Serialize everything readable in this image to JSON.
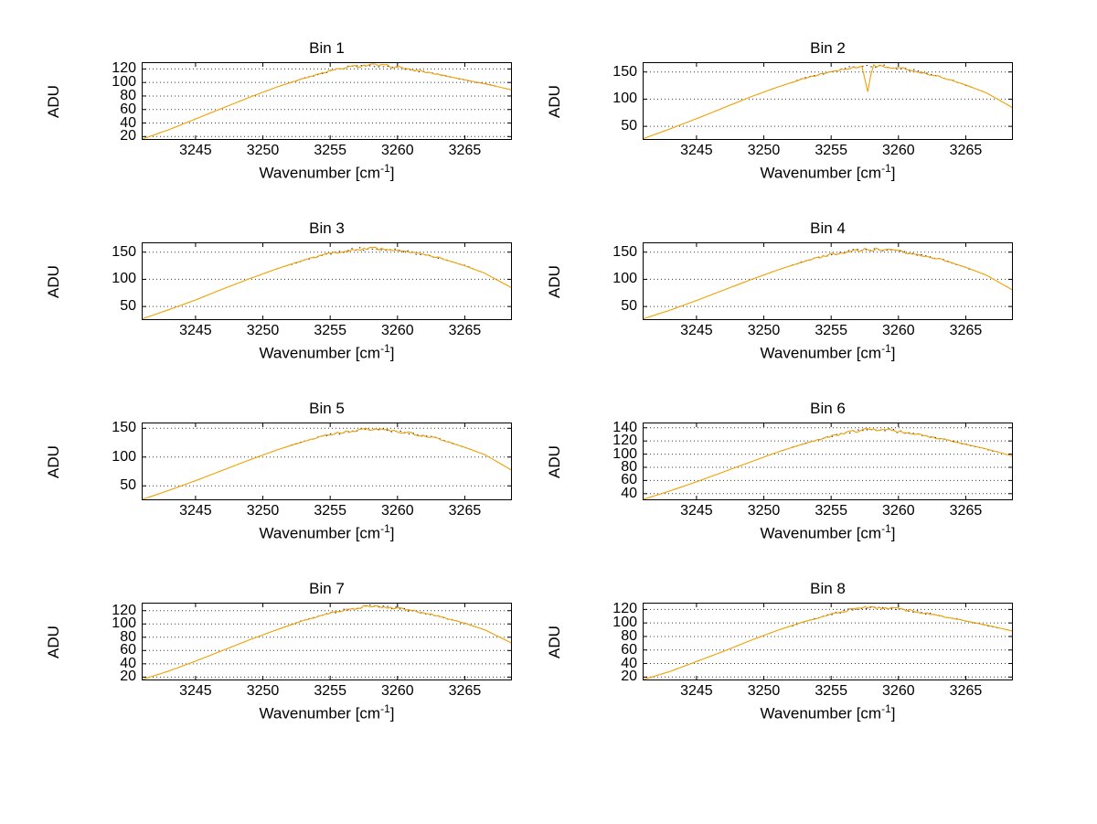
{
  "figure": {
    "background": "#ffffff",
    "line_color": "#f0a000",
    "overlay_color": "#26203a",
    "axis_color": "#000000",
    "grid_color": "#3c3c3c"
  },
  "labels": {
    "ylabel": "ADU",
    "xlabel_pre": "Wavenumber [cm",
    "xlabel_sup": "-1",
    "xlabel_post": "]"
  },
  "chart_data": [
    {
      "type": "line",
      "title": "Bin 1",
      "xlabel": "Wavenumber [cm-1]",
      "ylabel": "ADU",
      "xlim": [
        3241,
        3268.5
      ],
      "ylim": [
        15,
        130
      ],
      "x_ticks": [
        3245,
        3250,
        3255,
        3260,
        3265
      ],
      "y_ticks": [
        20,
        40,
        60,
        80,
        100,
        120
      ],
      "x": [
        3241,
        3243,
        3245,
        3247,
        3249,
        3251,
        3253,
        3255,
        3256.5,
        3258,
        3259.5,
        3261,
        3263,
        3265,
        3266.5,
        3268.5
      ],
      "y": [
        16,
        30,
        46,
        62,
        78,
        93,
        106,
        117,
        123,
        126,
        124,
        119,
        112,
        104,
        98,
        89
      ],
      "peak": 126,
      "center": 3257.5,
      "noise": 2.2,
      "seed": 1,
      "spike": null
    },
    {
      "type": "line",
      "title": "Bin 2",
      "xlabel": "Wavenumber [cm-1]",
      "ylabel": "ADU",
      "xlim": [
        3241,
        3268.5
      ],
      "ylim": [
        25,
        168
      ],
      "x_ticks": [
        3245,
        3250,
        3255,
        3260,
        3265
      ],
      "y_ticks": [
        50,
        100,
        150
      ],
      "x": [
        3241,
        3243,
        3245,
        3247,
        3249,
        3251,
        3253,
        3255,
        3256.5,
        3258,
        3259.5,
        3261,
        3263,
        3265,
        3266.5,
        3268.5
      ],
      "y": [
        27,
        45,
        64,
        84,
        104,
        122,
        138,
        151,
        158,
        161,
        159,
        153,
        142,
        126,
        112,
        84
      ],
      "peak": 161,
      "center": 3257.5,
      "noise": 3.0,
      "seed": 2,
      "spike": {
        "x": 3257.7,
        "depth": 47
      }
    },
    {
      "type": "line",
      "title": "Bin 3",
      "xlabel": "Wavenumber [cm-1]",
      "ylabel": "ADU",
      "xlim": [
        3241,
        3268.5
      ],
      "ylim": [
        25,
        168
      ],
      "x_ticks": [
        3245,
        3250,
        3255,
        3260,
        3265
      ],
      "y_ticks": [
        50,
        100,
        150
      ],
      "x": [
        3241,
        3243,
        3245,
        3247,
        3249,
        3251,
        3253,
        3255,
        3256.5,
        3258,
        3259.5,
        3261,
        3263,
        3265,
        3266.5,
        3268.5
      ],
      "y": [
        27,
        44,
        62,
        82,
        101,
        119,
        135,
        148,
        154,
        157,
        155,
        150,
        140,
        125,
        111,
        84
      ],
      "peak": 157,
      "center": 3257.5,
      "noise": 3.0,
      "seed": 3,
      "spike": null
    },
    {
      "type": "line",
      "title": "Bin 4",
      "xlabel": "Wavenumber [cm-1]",
      "ylabel": "ADU",
      "xlim": [
        3241,
        3268.5
      ],
      "ylim": [
        25,
        168
      ],
      "x_ticks": [
        3245,
        3250,
        3255,
        3260,
        3265
      ],
      "y_ticks": [
        50,
        100,
        150
      ],
      "x": [
        3241,
        3243,
        3245,
        3247,
        3249,
        3251,
        3253,
        3255,
        3256.5,
        3258,
        3259.5,
        3261,
        3263,
        3265,
        3266.5,
        3268.5
      ],
      "y": [
        27,
        43,
        61,
        80,
        99,
        117,
        133,
        146,
        152,
        155,
        153,
        148,
        138,
        122,
        108,
        80
      ],
      "peak": 155,
      "center": 3257.5,
      "noise": 3.0,
      "seed": 4,
      "spike": null
    },
    {
      "type": "line",
      "title": "Bin 5",
      "xlabel": "Wavenumber [cm-1]",
      "ylabel": "ADU",
      "xlim": [
        3241,
        3268.5
      ],
      "ylim": [
        25,
        160
      ],
      "x_ticks": [
        3245,
        3250,
        3255,
        3260,
        3265
      ],
      "y_ticks": [
        50,
        100,
        150
      ],
      "x": [
        3241,
        3243,
        3245,
        3247,
        3249,
        3251,
        3253,
        3255,
        3256.5,
        3258,
        3259.5,
        3261,
        3263,
        3265,
        3266.5,
        3268.5
      ],
      "y": [
        26,
        42,
        59,
        77,
        95,
        112,
        127,
        139,
        145,
        148,
        146,
        141,
        132,
        117,
        104,
        77
      ],
      "peak": 148,
      "center": 3257.5,
      "noise": 3.0,
      "seed": 5,
      "spike": null
    },
    {
      "type": "line",
      "title": "Bin 6",
      "xlabel": "Wavenumber [cm-1]",
      "ylabel": "ADU",
      "xlim": [
        3241,
        3268.5
      ],
      "ylim": [
        30,
        148
      ],
      "x_ticks": [
        3245,
        3250,
        3255,
        3260,
        3265
      ],
      "y_ticks": [
        40,
        60,
        80,
        100,
        120,
        140
      ],
      "x": [
        3241,
        3243,
        3245,
        3247,
        3249,
        3251,
        3253,
        3255,
        3256.5,
        3258,
        3259.5,
        3261,
        3263,
        3265,
        3266.5,
        3268.5
      ],
      "y": [
        31,
        44,
        58,
        73,
        88,
        103,
        116,
        127,
        134,
        138,
        136,
        131,
        124,
        115,
        108,
        97
      ],
      "peak": 138,
      "center": 3257.5,
      "noise": 2.4,
      "seed": 6,
      "spike": null
    },
    {
      "type": "line",
      "title": "Bin 7",
      "xlabel": "Wavenumber [cm-1]",
      "ylabel": "ADU",
      "xlim": [
        3241,
        3268.5
      ],
      "ylim": [
        15,
        132
      ],
      "x_ticks": [
        3245,
        3250,
        3255,
        3260,
        3265
      ],
      "y_ticks": [
        20,
        40,
        60,
        80,
        100,
        120
      ],
      "x": [
        3241,
        3243,
        3245,
        3247,
        3249,
        3251,
        3253,
        3255,
        3256.5,
        3258,
        3259.5,
        3261,
        3263,
        3265,
        3266.5,
        3268.5
      ],
      "y": [
        16,
        29,
        44,
        60,
        76,
        91,
        105,
        116,
        123,
        127,
        125,
        120,
        112,
        101,
        91,
        71
      ],
      "peak": 127,
      "center": 3257.5,
      "noise": 2.2,
      "seed": 7,
      "spike": null
    },
    {
      "type": "line",
      "title": "Bin 8",
      "xlabel": "Wavenumber [cm-1]",
      "ylabel": "ADU",
      "xlim": [
        3241,
        3268.5
      ],
      "ylim": [
        15,
        130
      ],
      "x_ticks": [
        3245,
        3250,
        3255,
        3260,
        3265
      ],
      "y_ticks": [
        20,
        40,
        60,
        80,
        100,
        120
      ],
      "x": [
        3241,
        3243,
        3245,
        3247,
        3249,
        3251,
        3253,
        3255,
        3256.5,
        3258,
        3259.5,
        3261,
        3263,
        3265,
        3266.5,
        3268.5
      ],
      "y": [
        16,
        28,
        43,
        58,
        74,
        89,
        102,
        113,
        120,
        124,
        122,
        118,
        111,
        103,
        97,
        88
      ],
      "peak": 124,
      "center": 3257.5,
      "noise": 2.2,
      "seed": 8,
      "spike": null
    }
  ]
}
